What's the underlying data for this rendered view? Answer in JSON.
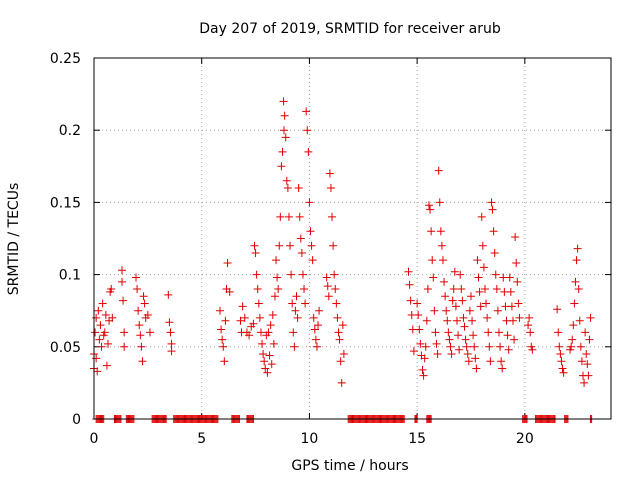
{
  "chart_data": {
    "type": "scatter",
    "title": "Day 207 of 2019, SRMTID for receiver arub",
    "xlabel": "GPS time / hours",
    "ylabel": "SRMTID / TECUs",
    "xlim": [
      0,
      24
    ],
    "ylim": [
      0,
      0.25
    ],
    "xticks": [
      0,
      5,
      10,
      15,
      20
    ],
    "xtick_labels": [
      "0",
      "5",
      "10",
      "15",
      "20"
    ],
    "yticks": [
      0,
      0.05,
      0.1,
      0.15,
      0.2,
      0.25
    ],
    "ytick_labels": [
      "0",
      "0.05",
      "0.1",
      "0.15",
      "0.2",
      "0.25"
    ],
    "grid": true,
    "marker": "plus",
    "color": "#e00000",
    "series": [
      {
        "name": "SRMTID",
        "points": [
          [
            0.0,
            0.045
          ],
          [
            0.0,
            0.035
          ],
          [
            0.05,
            0.06
          ],
          [
            0.1,
            0.07
          ],
          [
            0.1,
            0.042
          ],
          [
            0.15,
            0.033
          ],
          [
            0.2,
            0.075
          ],
          [
            0.25,
            0.055
          ],
          [
            0.3,
            0.065
          ],
          [
            0.35,
            0.05
          ],
          [
            0.4,
            0.08
          ],
          [
            0.45,
            0.058
          ],
          [
            0.5,
            0.06
          ],
          [
            0.55,
            0.072
          ],
          [
            0.6,
            0.037
          ],
          [
            0.65,
            0.052
          ],
          [
            0.7,
            0.068
          ],
          [
            0.75,
            0.088
          ],
          [
            0.8,
            0.09
          ],
          [
            0.85,
            0.07
          ],
          [
            1.3,
            0.103
          ],
          [
            1.3,
            0.095
          ],
          [
            1.35,
            0.082
          ],
          [
            1.4,
            0.06
          ],
          [
            1.4,
            0.05
          ],
          [
            1.95,
            0.098
          ],
          [
            2.0,
            0.09
          ],
          [
            2.05,
            0.075
          ],
          [
            2.1,
            0.065
          ],
          [
            2.15,
            0.058
          ],
          [
            2.2,
            0.05
          ],
          [
            2.25,
            0.04
          ],
          [
            2.3,
            0.085
          ],
          [
            2.35,
            0.08
          ],
          [
            2.4,
            0.07
          ],
          [
            2.5,
            0.072
          ],
          [
            2.6,
            0.06
          ],
          [
            3.45,
            0.086
          ],
          [
            3.5,
            0.067
          ],
          [
            3.55,
            0.06
          ],
          [
            3.6,
            0.052
          ],
          [
            3.6,
            0.047
          ],
          [
            5.85,
            0.075
          ],
          [
            5.9,
            0.062
          ],
          [
            5.95,
            0.055
          ],
          [
            6.0,
            0.05
          ],
          [
            6.05,
            0.04
          ],
          [
            6.1,
            0.068
          ],
          [
            6.15,
            0.09
          ],
          [
            6.2,
            0.108
          ],
          [
            6.3,
            0.088
          ],
          [
            6.8,
            0.068
          ],
          [
            6.85,
            0.06
          ],
          [
            6.9,
            0.078
          ],
          [
            7.0,
            0.07
          ],
          [
            7.1,
            0.06
          ],
          [
            7.2,
            0.058
          ],
          [
            7.3,
            0.064
          ],
          [
            7.4,
            0.066
          ],
          [
            7.45,
            0.12
          ],
          [
            7.5,
            0.115
          ],
          [
            7.55,
            0.1
          ],
          [
            7.6,
            0.09
          ],
          [
            7.65,
            0.08
          ],
          [
            7.7,
            0.07
          ],
          [
            7.75,
            0.06
          ],
          [
            7.8,
            0.052
          ],
          [
            7.85,
            0.045
          ],
          [
            7.9,
            0.04
          ],
          [
            7.95,
            0.035
          ],
          [
            8.0,
            0.058
          ],
          [
            8.05,
            0.032
          ],
          [
            8.1,
            0.06
          ],
          [
            8.15,
            0.044
          ],
          [
            8.2,
            0.065
          ],
          [
            8.25,
            0.038
          ],
          [
            8.3,
            0.072
          ],
          [
            8.35,
            0.052
          ],
          [
            8.4,
            0.085
          ],
          [
            8.45,
            0.11
          ],
          [
            8.5,
            0.098
          ],
          [
            8.55,
            0.09
          ],
          [
            8.6,
            0.12
          ],
          [
            8.65,
            0.14
          ],
          [
            8.7,
            0.175
          ],
          [
            8.75,
            0.185
          ],
          [
            8.8,
            0.22
          ],
          [
            8.82,
            0.2
          ],
          [
            8.85,
            0.21
          ],
          [
            8.9,
            0.195
          ],
          [
            8.95,
            0.165
          ],
          [
            9.0,
            0.16
          ],
          [
            9.05,
            0.14
          ],
          [
            9.1,
            0.12
          ],
          [
            9.15,
            0.1
          ],
          [
            9.2,
            0.08
          ],
          [
            9.25,
            0.06
          ],
          [
            9.3,
            0.05
          ],
          [
            9.35,
            0.075
          ],
          [
            9.4,
            0.085
          ],
          [
            9.45,
            0.07
          ],
          [
            9.5,
            0.16
          ],
          [
            9.55,
            0.14
          ],
          [
            9.6,
            0.125
          ],
          [
            9.65,
            0.115
          ],
          [
            9.7,
            0.1
          ],
          [
            9.75,
            0.09
          ],
          [
            9.8,
            0.08
          ],
          [
            9.85,
            0.213
          ],
          [
            9.9,
            0.2
          ],
          [
            9.95,
            0.185
          ],
          [
            10.0,
            0.15
          ],
          [
            10.05,
            0.13
          ],
          [
            10.1,
            0.12
          ],
          [
            10.15,
            0.11
          ],
          [
            10.2,
            0.07
          ],
          [
            10.25,
            0.062
          ],
          [
            10.3,
            0.055
          ],
          [
            10.35,
            0.05
          ],
          [
            10.4,
            0.065
          ],
          [
            10.45,
            0.075
          ],
          [
            10.8,
            0.098
          ],
          [
            10.85,
            0.092
          ],
          [
            10.9,
            0.085
          ],
          [
            10.95,
            0.17
          ],
          [
            11.0,
            0.16
          ],
          [
            11.05,
            0.14
          ],
          [
            11.1,
            0.12
          ],
          [
            11.15,
            0.1
          ],
          [
            11.2,
            0.09
          ],
          [
            11.25,
            0.08
          ],
          [
            11.3,
            0.07
          ],
          [
            11.35,
            0.06
          ],
          [
            11.4,
            0.055
          ],
          [
            11.45,
            0.04
          ],
          [
            11.5,
            0.025
          ],
          [
            11.55,
            0.065
          ],
          [
            11.6,
            0.045
          ],
          [
            14.6,
            0.102
          ],
          [
            14.65,
            0.093
          ],
          [
            14.7,
            0.082
          ],
          [
            14.75,
            0.072
          ],
          [
            14.8,
            0.062
          ],
          [
            14.85,
            0.047
          ],
          [
            15.0,
            0.08
          ],
          [
            15.05,
            0.072
          ],
          [
            15.1,
            0.062
          ],
          [
            15.15,
            0.052
          ],
          [
            15.2,
            0.044
          ],
          [
            15.25,
            0.034
          ],
          [
            15.3,
            0.03
          ],
          [
            15.35,
            0.042
          ],
          [
            15.4,
            0.05
          ],
          [
            15.45,
            0.068
          ],
          [
            15.5,
            0.09
          ],
          [
            15.55,
            0.148
          ],
          [
            15.6,
            0.145
          ],
          [
            15.65,
            0.13
          ],
          [
            15.7,
            0.11
          ],
          [
            15.75,
            0.098
          ],
          [
            15.8,
            0.075
          ],
          [
            15.85,
            0.06
          ],
          [
            15.9,
            0.052
          ],
          [
            15.95,
            0.045
          ],
          [
            16.0,
            0.172
          ],
          [
            16.05,
            0.15
          ],
          [
            16.1,
            0.13
          ],
          [
            16.15,
            0.12
          ],
          [
            16.2,
            0.11
          ],
          [
            16.25,
            0.095
          ],
          [
            16.3,
            0.085
          ],
          [
            16.35,
            0.075
          ],
          [
            16.4,
            0.068
          ],
          [
            16.45,
            0.06
          ],
          [
            16.5,
            0.055
          ],
          [
            16.55,
            0.05
          ],
          [
            16.6,
            0.045
          ],
          [
            16.65,
            0.082
          ],
          [
            16.7,
            0.09
          ],
          [
            16.75,
            0.102
          ],
          [
            16.8,
            0.078
          ],
          [
            16.85,
            0.068
          ],
          [
            16.9,
            0.058
          ],
          [
            16.95,
            0.048
          ],
          [
            17.0,
            0.1
          ],
          [
            17.05,
            0.09
          ],
          [
            17.1,
            0.082
          ],
          [
            17.15,
            0.07
          ],
          [
            17.2,
            0.064
          ],
          [
            17.25,
            0.055
          ],
          [
            17.3,
            0.05
          ],
          [
            17.35,
            0.045
          ],
          [
            17.4,
            0.04
          ],
          [
            17.45,
            0.075
          ],
          [
            17.5,
            0.085
          ],
          [
            17.55,
            0.068
          ],
          [
            17.6,
            0.058
          ],
          [
            17.65,
            0.05
          ],
          [
            17.7,
            0.042
          ],
          [
            17.75,
            0.035
          ],
          [
            17.8,
            0.11
          ],
          [
            17.85,
            0.098
          ],
          [
            17.9,
            0.088
          ],
          [
            17.95,
            0.078
          ],
          [
            18.0,
            0.14
          ],
          [
            18.05,
            0.12
          ],
          [
            18.1,
            0.105
          ],
          [
            18.15,
            0.09
          ],
          [
            18.2,
            0.08
          ],
          [
            18.25,
            0.07
          ],
          [
            18.3,
            0.06
          ],
          [
            18.35,
            0.05
          ],
          [
            18.4,
            0.04
          ],
          [
            18.45,
            0.15
          ],
          [
            18.5,
            0.145
          ],
          [
            18.55,
            0.13
          ],
          [
            18.6,
            0.115
          ],
          [
            18.65,
            0.1
          ],
          [
            18.7,
            0.09
          ],
          [
            18.75,
            0.075
          ],
          [
            18.8,
            0.06
          ],
          [
            18.85,
            0.05
          ],
          [
            18.9,
            0.04
          ],
          [
            18.95,
            0.035
          ],
          [
            19.0,
            0.098
          ],
          [
            19.05,
            0.088
          ],
          [
            19.1,
            0.078
          ],
          [
            19.15,
            0.068
          ],
          [
            19.2,
            0.058
          ],
          [
            19.25,
            0.048
          ],
          [
            19.3,
            0.098
          ],
          [
            19.35,
            0.088
          ],
          [
            19.4,
            0.078
          ],
          [
            19.45,
            0.068
          ],
          [
            19.5,
            0.055
          ],
          [
            19.55,
            0.126
          ],
          [
            19.6,
            0.108
          ],
          [
            19.65,
            0.095
          ],
          [
            19.7,
            0.08
          ],
          [
            19.75,
            0.07
          ],
          [
            20.15,
            0.065
          ],
          [
            20.2,
            0.07
          ],
          [
            20.25,
            0.06
          ],
          [
            20.3,
            0.05
          ],
          [
            20.35,
            0.048
          ],
          [
            21.5,
            0.076
          ],
          [
            21.55,
            0.06
          ],
          [
            21.6,
            0.05
          ],
          [
            21.65,
            0.045
          ],
          [
            21.7,
            0.04
          ],
          [
            21.75,
            0.035
          ],
          [
            21.8,
            0.032
          ],
          [
            22.1,
            0.048
          ],
          [
            22.15,
            0.05
          ],
          [
            22.2,
            0.055
          ],
          [
            22.25,
            0.065
          ],
          [
            22.3,
            0.08
          ],
          [
            22.35,
            0.095
          ],
          [
            22.4,
            0.11
          ],
          [
            22.45,
            0.118
          ],
          [
            22.5,
            0.09
          ],
          [
            22.55,
            0.068
          ],
          [
            22.6,
            0.05
          ],
          [
            22.65,
            0.04
          ],
          [
            22.7,
            0.03
          ],
          [
            22.75,
            0.025
          ],
          [
            22.8,
            0.06
          ],
          [
            22.85,
            0.045
          ],
          [
            22.9,
            0.038
          ],
          [
            22.95,
            0.03
          ],
          [
            23.0,
            0.055
          ],
          [
            23.05,
            0.07
          ]
        ]
      }
    ],
    "zero_runs": [
      [
        0.1,
        0.45
      ],
      [
        0.95,
        1.25
      ],
      [
        1.5,
        1.85
      ],
      [
        2.7,
        3.35
      ],
      [
        3.7,
        5.75
      ],
      [
        6.4,
        6.75
      ],
      [
        7.1,
        7.4
      ],
      [
        11.8,
        14.4
      ],
      [
        14.9,
        15.0
      ],
      [
        15.45,
        15.65
      ],
      [
        19.9,
        20.1
      ],
      [
        20.5,
        21.4
      ],
      [
        21.85,
        22.0
      ],
      [
        23.05,
        23.1
      ]
    ]
  }
}
